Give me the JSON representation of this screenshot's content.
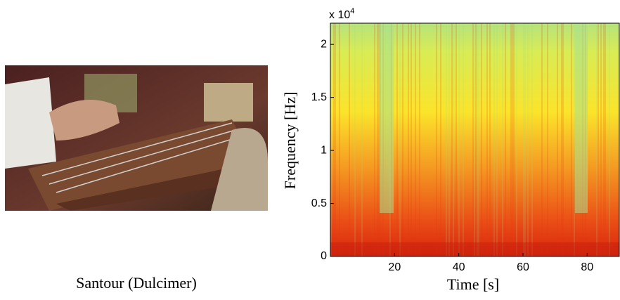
{
  "photo_caption": "Santour (Dulcimer)",
  "chart_data": {
    "type": "heatmap",
    "xlabel": "Time [s]",
    "ylabel": "Frequency [Hz]",
    "y_multiplier": {
      "base": "x 10",
      "power": "4"
    },
    "xlim": [
      0,
      90
    ],
    "xticks": [
      20,
      40,
      60,
      80
    ],
    "ylim": [
      0,
      2.2
    ],
    "yticks": [
      0,
      0.5,
      1,
      1.5,
      2
    ]
  }
}
